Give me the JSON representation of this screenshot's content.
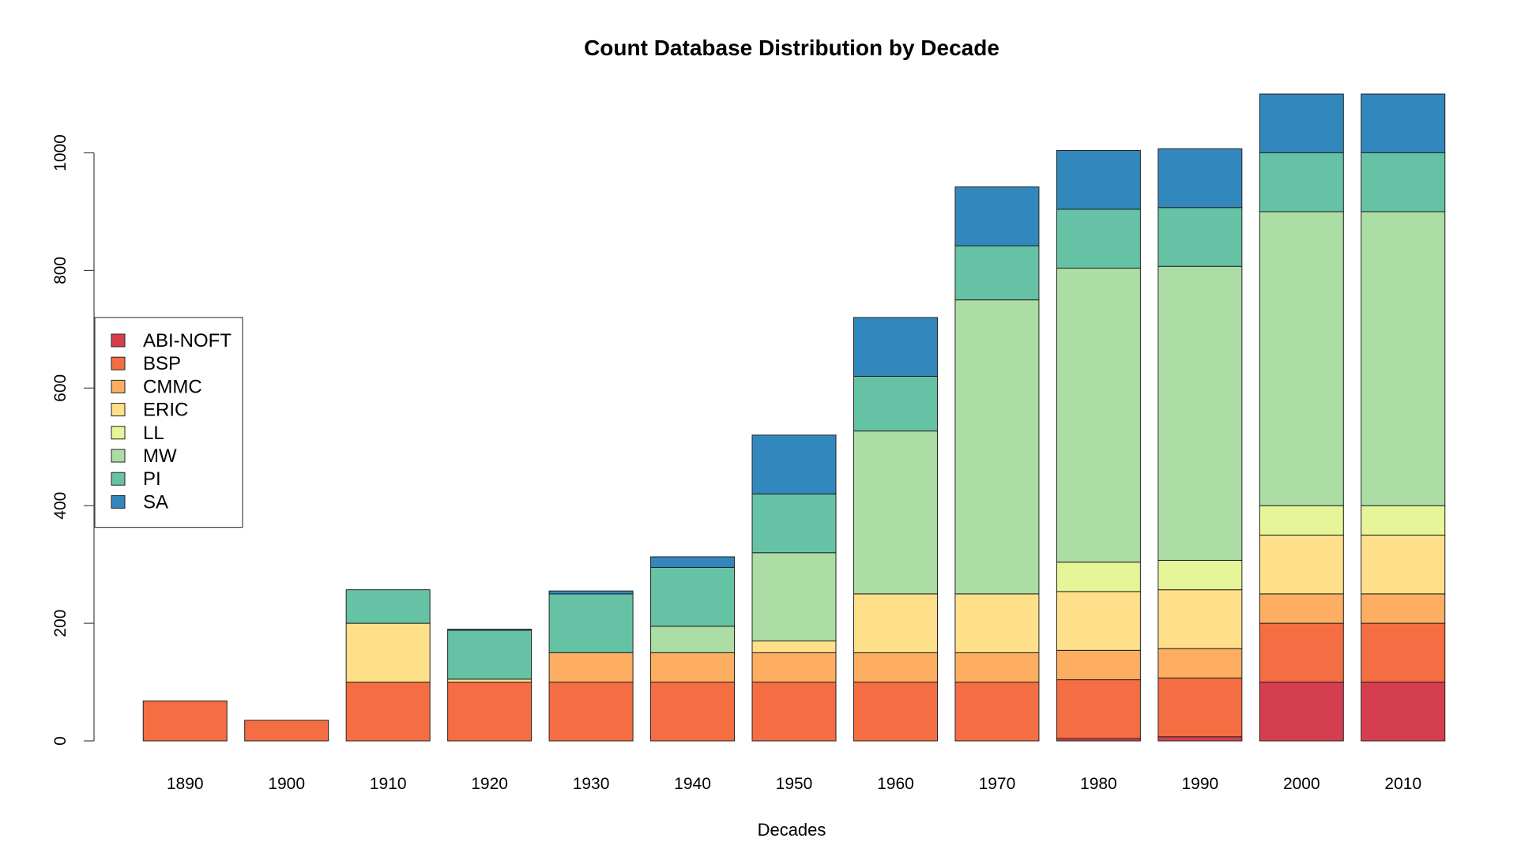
{
  "chart_data": {
    "type": "bar",
    "stacked": true,
    "title": "Count Database Distribution by Decade",
    "xlabel": "Decades",
    "ylabel": "",
    "categories": [
      "1890",
      "1900",
      "1910",
      "1920",
      "1930",
      "1940",
      "1950",
      "1960",
      "1970",
      "1980",
      "1990",
      "2000",
      "2010"
    ],
    "ylim": [
      0,
      1100
    ],
    "yticks": [
      0,
      200,
      400,
      600,
      800,
      1000
    ],
    "grid": false,
    "legend_position": "left",
    "series": [
      {
        "name": "ABI-NOFT",
        "color": "#D53E4F",
        "values": [
          0,
          0,
          0,
          0,
          0,
          0,
          0,
          0,
          0,
          4,
          7,
          100,
          100
        ]
      },
      {
        "name": "BSP",
        "color": "#F46D43",
        "values": [
          68,
          35,
          100,
          100,
          100,
          100,
          100,
          100,
          100,
          100,
          100,
          100,
          100
        ]
      },
      {
        "name": "CMMC",
        "color": "#FDAE61",
        "values": [
          0,
          0,
          0,
          0,
          50,
          50,
          50,
          50,
          50,
          50,
          50,
          50,
          50
        ]
      },
      {
        "name": "ERIC",
        "color": "#FEE08B",
        "values": [
          0,
          0,
          100,
          5,
          0,
          0,
          20,
          100,
          100,
          100,
          100,
          100,
          100
        ]
      },
      {
        "name": "LL",
        "color": "#E6F598",
        "values": [
          0,
          0,
          0,
          0,
          0,
          0,
          0,
          0,
          0,
          50,
          50,
          50,
          50
        ]
      },
      {
        "name": "MW",
        "color": "#ABDDA4",
        "values": [
          0,
          0,
          0,
          0,
          0,
          45,
          150,
          277,
          500,
          500,
          500,
          500,
          500
        ]
      },
      {
        "name": "PI",
        "color": "#66C2A5",
        "values": [
          0,
          0,
          57,
          83,
          100,
          100,
          100,
          93,
          92,
          100,
          100,
          100,
          100
        ]
      },
      {
        "name": "SA",
        "color": "#3288BD",
        "values": [
          0,
          0,
          0,
          2,
          5,
          18,
          100,
          100,
          100,
          100,
          100,
          100,
          100
        ]
      }
    ]
  }
}
